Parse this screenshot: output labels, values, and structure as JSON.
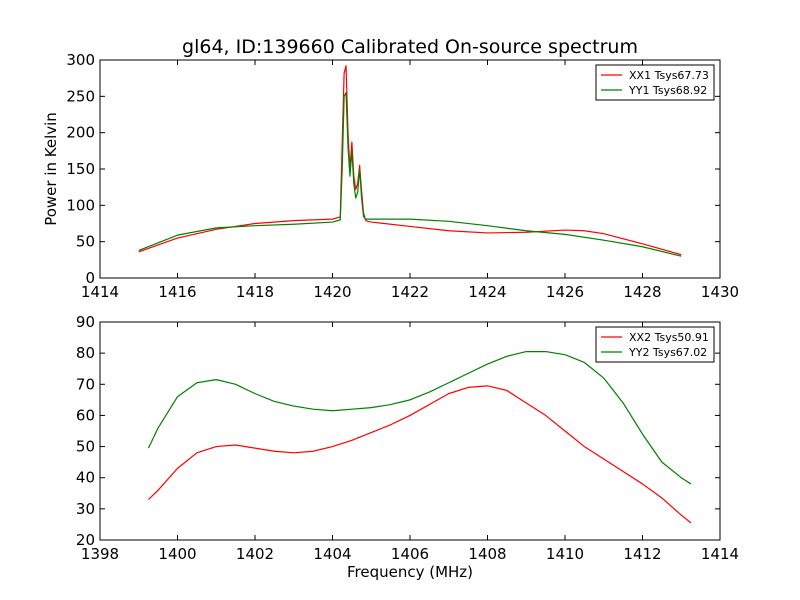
{
  "chart_data": [
    {
      "type": "line",
      "title": "gl64, ID:139660 Calibrated On-source spectrum",
      "xlabel": "",
      "ylabel": "Power in Kelvin",
      "xlim": [
        1414,
        1430
      ],
      "ylim": [
        0,
        300
      ],
      "xticks": [
        1414,
        1416,
        1418,
        1420,
        1422,
        1424,
        1426,
        1428,
        1430
      ],
      "yticks": [
        0,
        50,
        100,
        150,
        200,
        250,
        300
      ],
      "legend_position": "top-right",
      "grid": false,
      "series": [
        {
          "name": "XX1 Tsys67.73",
          "color": "#ff0000",
          "x": [
            1415,
            1416,
            1417,
            1418,
            1419,
            1420,
            1420.2,
            1420.25,
            1420.3,
            1420.35,
            1420.4,
            1420.45,
            1420.5,
            1420.55,
            1420.6,
            1420.65,
            1420.7,
            1420.75,
            1420.8,
            1420.85,
            1420.9,
            1421,
            1422,
            1423,
            1424,
            1425,
            1426,
            1426.5,
            1427,
            1428,
            1429
          ],
          "y": [
            36,
            55,
            67,
            75,
            79,
            81,
            84,
            185,
            282,
            292,
            200,
            150,
            187,
            140,
            122,
            130,
            155,
            120,
            90,
            80,
            78,
            77,
            71,
            65,
            62,
            63,
            66,
            65,
            61,
            47,
            32
          ]
        },
        {
          "name": "YY1 Tsys68.92",
          "color": "#008000",
          "x": [
            1415,
            1416,
            1417,
            1418,
            1419,
            1420,
            1420.2,
            1420.25,
            1420.3,
            1420.35,
            1420.4,
            1420.45,
            1420.5,
            1420.55,
            1420.6,
            1420.65,
            1420.7,
            1420.75,
            1420.8,
            1420.85,
            1420.9,
            1421,
            1422,
            1423,
            1424,
            1425,
            1426,
            1427,
            1428,
            1429
          ],
          "y": [
            38,
            59,
            69,
            72,
            74,
            77,
            80,
            150,
            250,
            255,
            180,
            140,
            175,
            130,
            110,
            118,
            150,
            110,
            85,
            81,
            81,
            81,
            81,
            78,
            72,
            65,
            60,
            52,
            43,
            30
          ]
        }
      ]
    },
    {
      "type": "line",
      "title": "",
      "xlabel": "Frequency (MHz)",
      "ylabel": "",
      "xlim": [
        1398,
        1414
      ],
      "ylim": [
        20,
        90
      ],
      "xticks": [
        1398,
        1400,
        1402,
        1404,
        1406,
        1408,
        1410,
        1412,
        1414
      ],
      "yticks": [
        20,
        30,
        40,
        50,
        60,
        70,
        80,
        90
      ],
      "legend_position": "top-right",
      "grid": false,
      "series": [
        {
          "name": "XX2 Tsys50.91",
          "color": "#ff0000",
          "x": [
            1399.25,
            1399.5,
            1400,
            1400.5,
            1401,
            1401.5,
            1402,
            1402.5,
            1403,
            1403.5,
            1404,
            1404.5,
            1405,
            1405.5,
            1406,
            1406.5,
            1407,
            1407.5,
            1408,
            1408.5,
            1409,
            1409.5,
            1410,
            1410.5,
            1411,
            1411.5,
            1412,
            1412.5,
            1413,
            1413.25
          ],
          "y": [
            33,
            36,
            43,
            48,
            50,
            50.5,
            49.5,
            48.5,
            48,
            48.5,
            50,
            52,
            54.5,
            57,
            60,
            63.5,
            67,
            69,
            69.5,
            68,
            64,
            60,
            55,
            50,
            46,
            42,
            38,
            33.5,
            28,
            25.5
          ]
        },
        {
          "name": "YY2 Tsys67.02",
          "color": "#008000",
          "x": [
            1399.25,
            1399.5,
            1400,
            1400.5,
            1401,
            1401.5,
            1402,
            1402.5,
            1403,
            1403.5,
            1404,
            1404.5,
            1405,
            1405.5,
            1406,
            1406.5,
            1407,
            1407.5,
            1408,
            1408.5,
            1409,
            1409.5,
            1410,
            1410.5,
            1411,
            1411.5,
            1412,
            1412.5,
            1413,
            1413.25
          ],
          "y": [
            49.5,
            56,
            66,
            70.5,
            71.5,
            70,
            67,
            64.5,
            63,
            62,
            61.5,
            62,
            62.5,
            63.5,
            65,
            67.5,
            70.5,
            73.5,
            76.5,
            79,
            80.5,
            80.5,
            79.5,
            77,
            72,
            64,
            54,
            45,
            40,
            38
          ]
        }
      ]
    }
  ]
}
